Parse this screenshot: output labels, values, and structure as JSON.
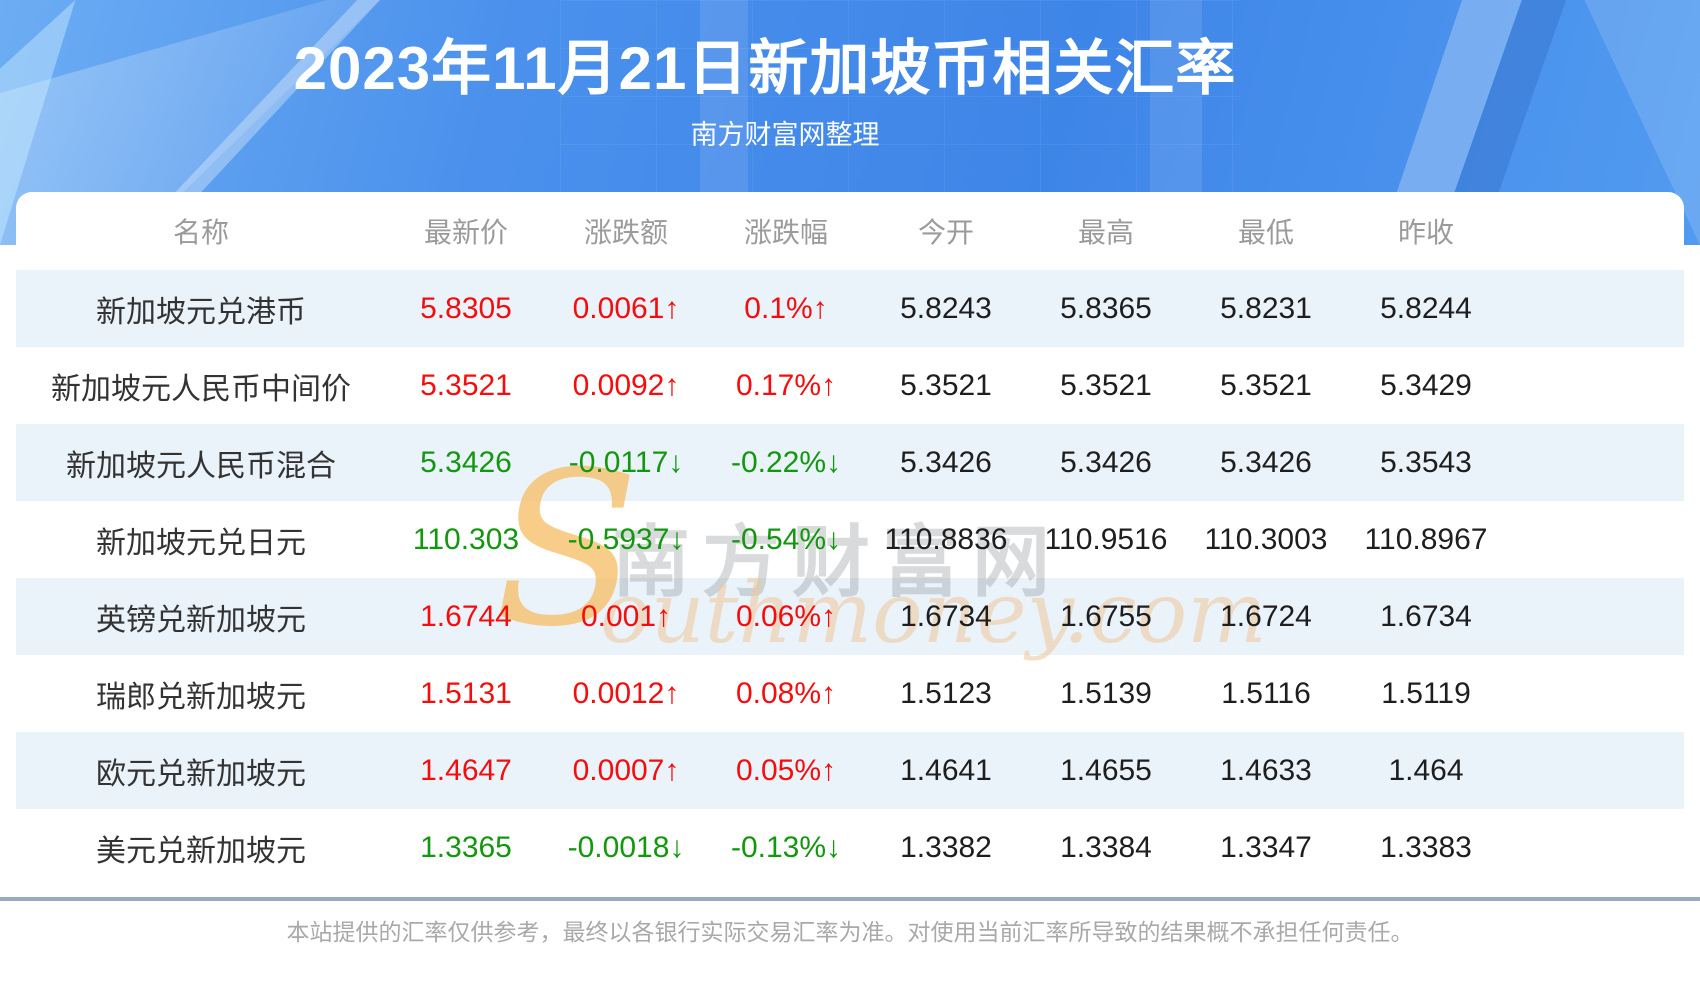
{
  "header": {
    "title": "2023年11月21日新加坡币相关汇率",
    "subtitle": "南方财富网整理"
  },
  "chart_data": {
    "type": "table",
    "title": "2023年11月21日新加坡币相关汇率",
    "columns": [
      "名称",
      "最新价",
      "涨跌额",
      "涨跌幅",
      "今开",
      "最高",
      "最低",
      "昨收"
    ],
    "rows": [
      {
        "name": "新加坡元兑港币",
        "latest": "5.8305",
        "change": "0.0061↑",
        "change_pct": "0.1%↑",
        "open": "5.8243",
        "high": "5.8365",
        "low": "5.8231",
        "prev_close": "5.8244",
        "trend": "up"
      },
      {
        "name": "新加坡元人民币中间价",
        "latest": "5.3521",
        "change": "0.0092↑",
        "change_pct": "0.17%↑",
        "open": "5.3521",
        "high": "5.3521",
        "low": "5.3521",
        "prev_close": "5.3429",
        "trend": "up"
      },
      {
        "name": "新加坡元人民币混合",
        "latest": "5.3426",
        "change": "-0.0117↓",
        "change_pct": "-0.22%↓",
        "open": "5.3426",
        "high": "5.3426",
        "low": "5.3426",
        "prev_close": "5.3543",
        "trend": "down"
      },
      {
        "name": "新加坡元兑日元",
        "latest": "110.303",
        "change": "-0.5937↓",
        "change_pct": "-0.54%↓",
        "open": "110.8836",
        "high": "110.9516",
        "low": "110.3003",
        "prev_close": "110.8967",
        "trend": "down"
      },
      {
        "name": "英镑兑新加坡元",
        "latest": "1.6744",
        "change": "0.001↑",
        "change_pct": "0.06%↑",
        "open": "1.6734",
        "high": "1.6755",
        "low": "1.6724",
        "prev_close": "1.6734",
        "trend": "up"
      },
      {
        "name": "瑞郎兑新加坡元",
        "latest": "1.5131",
        "change": "0.0012↑",
        "change_pct": "0.08%↑",
        "open": "1.5123",
        "high": "1.5139",
        "low": "1.5116",
        "prev_close": "1.5119",
        "trend": "up"
      },
      {
        "name": "欧元兑新加坡元",
        "latest": "1.4647",
        "change": "0.0007↑",
        "change_pct": "0.05%↑",
        "open": "1.4641",
        "high": "1.4655",
        "low": "1.4633",
        "prev_close": "1.464",
        "trend": "up"
      },
      {
        "name": "美元兑新加坡元",
        "latest": "1.3365",
        "change": "-0.0018↓",
        "change_pct": "-0.13%↓",
        "open": "1.3382",
        "high": "1.3384",
        "low": "1.3347",
        "prev_close": "1.3383",
        "trend": "down"
      }
    ]
  },
  "watermark": {
    "cn": "南方财富网",
    "en_initial": "S",
    "en_rest": "outhmoney.com"
  },
  "footer": {
    "disclaimer": "本站提供的汇率仅供参考，最终以各银行实际交易汇率为准。对使用当前汇率所导致的结果概不承担任何责任。"
  },
  "colors": {
    "up_red": "#f50d0d",
    "down_green": "#13970f",
    "row_stripe": "#eaf2fa",
    "header_label": "#9b9b9b"
  }
}
